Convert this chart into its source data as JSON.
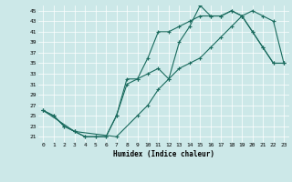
{
  "title": "",
  "xlabel": "Humidex (Indice chaleur)",
  "xlim": [
    -0.5,
    23.5
  ],
  "ylim": [
    20,
    46
  ],
  "yticks": [
    21,
    23,
    25,
    27,
    29,
    31,
    33,
    35,
    37,
    39,
    41,
    43,
    45
  ],
  "xticks": [
    0,
    1,
    2,
    3,
    4,
    5,
    6,
    7,
    8,
    9,
    10,
    11,
    12,
    13,
    14,
    15,
    16,
    17,
    18,
    19,
    20,
    21,
    22,
    23
  ],
  "background_color": "#cce8e8",
  "line_color": "#1a6b5e",
  "line1_x": [
    0,
    1,
    2,
    3,
    4,
    5,
    6,
    7,
    8,
    9,
    10,
    11,
    12,
    13,
    14,
    15,
    16,
    17,
    18,
    19,
    20,
    21,
    22,
    23
  ],
  "line1_y": [
    26,
    25,
    23,
    22,
    21,
    21,
    21,
    25,
    32,
    32,
    33,
    34,
    32,
    39,
    42,
    46,
    44,
    44,
    45,
    44,
    41,
    38,
    35,
    35
  ],
  "line2_x": [
    0,
    1,
    2,
    3,
    4,
    5,
    6,
    7,
    8,
    9,
    10,
    11,
    12,
    13,
    14,
    15,
    16,
    17,
    18,
    19,
    20,
    21,
    22,
    23
  ],
  "line2_y": [
    26,
    25,
    23,
    22,
    21,
    21,
    21,
    25,
    31,
    32,
    36,
    41,
    41,
    42,
    43,
    44,
    44,
    44,
    45,
    44,
    41,
    38,
    35,
    35
  ],
  "line3_x": [
    0,
    3,
    7,
    9,
    10,
    11,
    12,
    13,
    14,
    15,
    16,
    17,
    18,
    19,
    20,
    21,
    22,
    23
  ],
  "line3_y": [
    26,
    22,
    21,
    25,
    27,
    30,
    32,
    34,
    35,
    36,
    38,
    40,
    42,
    44,
    45,
    44,
    43,
    35
  ]
}
